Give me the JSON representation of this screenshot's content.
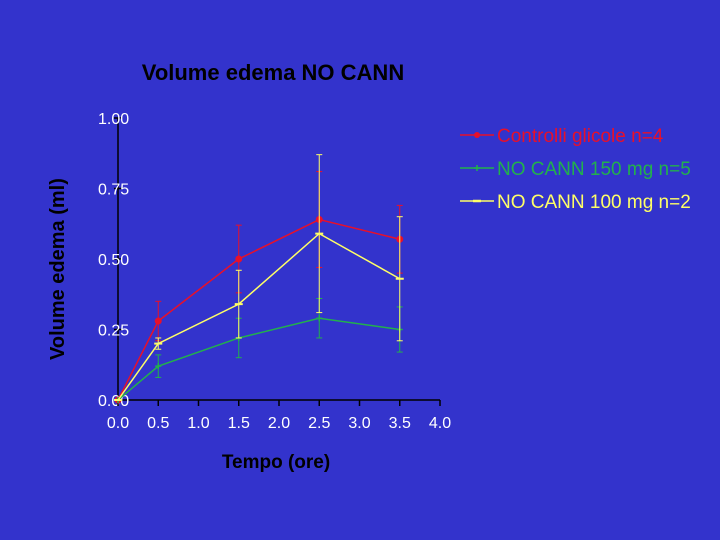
{
  "chart_data": {
    "type": "line",
    "title": "Volume edema NO CANN",
    "xlabel": "Tempo (ore)",
    "ylabel": "Volume edema (ml)",
    "xlim": [
      0.0,
      4.0
    ],
    "ylim": [
      0.0,
      1.0
    ],
    "x_ticks": [
      "0.0",
      "0.5",
      "1.0",
      "1.5",
      "2.0",
      "2.5",
      "3.0",
      "3.5",
      "4.0"
    ],
    "y_ticks": [
      "0.00",
      "0.25",
      "0.50",
      "0.75",
      "1.00"
    ],
    "grid": false,
    "legend_position": "top-right",
    "series": [
      {
        "name": "Controlli glicole n=4",
        "color": "#e8102a",
        "marker": "circle",
        "x": [
          0.0,
          0.5,
          1.5,
          2.5,
          3.5
        ],
        "y": [
          0.0,
          0.28,
          0.5,
          0.64,
          0.57
        ],
        "err": [
          0.0,
          0.07,
          0.12,
          0.17,
          0.12
        ]
      },
      {
        "name": "NO CANN 150 mg n=5",
        "color": "#22b14c",
        "marker": "cross",
        "x": [
          0.0,
          0.5,
          1.5,
          2.5,
          3.5
        ],
        "y": [
          0.0,
          0.12,
          0.22,
          0.29,
          0.25
        ],
        "err": [
          0.0,
          0.04,
          0.07,
          0.07,
          0.08
        ]
      },
      {
        "name": "NO CANN 100 mg n=2",
        "color": "#ffff66",
        "marker": "dash",
        "x": [
          0.0,
          0.5,
          1.5,
          2.5,
          3.5
        ],
        "y": [
          0.0,
          0.2,
          0.34,
          0.59,
          0.43
        ],
        "err": [
          0.0,
          0.02,
          0.12,
          0.28,
          0.22
        ]
      }
    ]
  }
}
